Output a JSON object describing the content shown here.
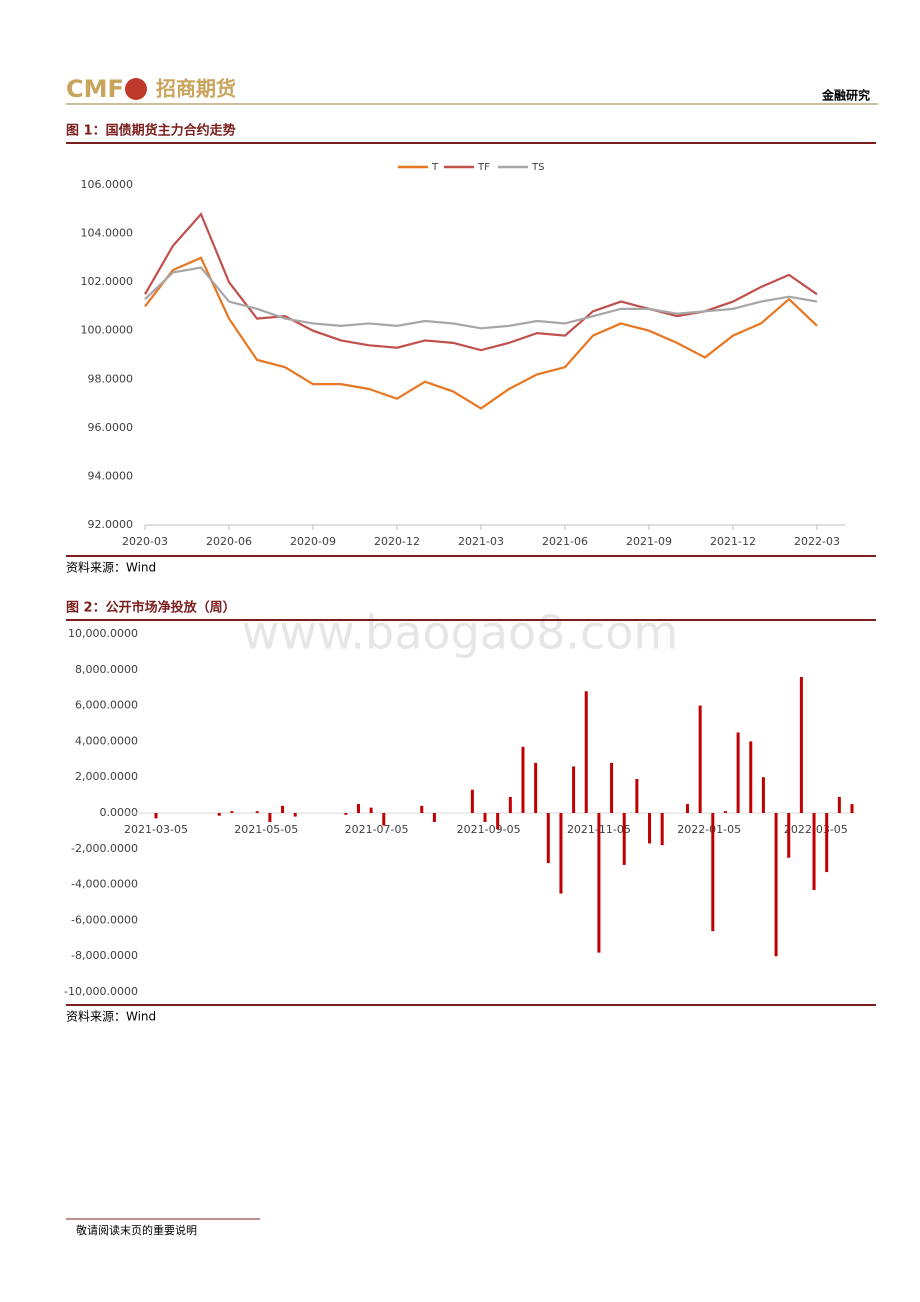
{
  "header": {
    "logo": "CMF",
    "brand": "招商期货",
    "section": "金融研究"
  },
  "watermark": "www.baogao8.com",
  "figures": [
    {
      "title": "图 1：国债期货主力合约走势",
      "source": "资料来源：Wind"
    },
    {
      "title": "图 2：公开市场净投放（周）",
      "source": "资料来源：Wind"
    }
  ],
  "footer": "敬请阅读末页的重要说明",
  "chart_data": [
    {
      "type": "line",
      "x": [
        "2020-03",
        "2020-04",
        "2020-05",
        "2020-06",
        "2020-07",
        "2020-08",
        "2020-09",
        "2020-10",
        "2020-11",
        "2020-12",
        "2021-01",
        "2021-02",
        "2021-03",
        "2021-04",
        "2021-05",
        "2021-06",
        "2021-07",
        "2021-08",
        "2021-09",
        "2021-10",
        "2021-11",
        "2021-12",
        "2022-01",
        "2022-02",
        "2022-03"
      ],
      "xlim": [
        "2020-03",
        "2022-04"
      ],
      "xticks": [
        "2020-03",
        "2020-06",
        "2020-09",
        "2020-12",
        "2021-03",
        "2021-06",
        "2021-09",
        "2021-12",
        "2022-03"
      ],
      "ylim": [
        92,
        106
      ],
      "yticks": [
        {
          "value": 92,
          "label": "92.0000"
        },
        {
          "value": 94,
          "label": "94.0000"
        },
        {
          "value": 96,
          "label": "96.0000"
        },
        {
          "value": 98,
          "label": "98.0000"
        },
        {
          "value": 100,
          "label": "100.0000"
        },
        {
          "value": 102,
          "label": "102.0000"
        },
        {
          "value": 104,
          "label": "104.0000"
        },
        {
          "value": 106,
          "label": "106.0000"
        }
      ],
      "legend": "top",
      "series": [
        {
          "name": "T",
          "color": "#e87722",
          "values": [
            101.0,
            102.5,
            103.0,
            100.5,
            98.8,
            98.5,
            97.8,
            97.8,
            97.6,
            97.2,
            97.9,
            97.5,
            96.8,
            97.6,
            98.2,
            98.5,
            99.8,
            100.3,
            100.0,
            99.5,
            98.9,
            99.8,
            100.3,
            101.3,
            100.2
          ]
        },
        {
          "name": "TF",
          "color": "#c0504d",
          "values": [
            101.5,
            103.5,
            104.8,
            102.0,
            100.5,
            100.6,
            100.0,
            99.6,
            99.4,
            99.3,
            99.6,
            99.5,
            99.2,
            99.5,
            99.9,
            99.8,
            100.8,
            101.2,
            100.9,
            100.6,
            100.8,
            101.2,
            101.8,
            102.3,
            101.5
          ]
        },
        {
          "name": "TS",
          "color": "#a6a6a6",
          "values": [
            101.3,
            102.4,
            102.6,
            101.2,
            100.9,
            100.5,
            100.3,
            100.2,
            100.3,
            100.2,
            100.4,
            100.3,
            100.1,
            100.2,
            100.4,
            100.3,
            100.6,
            100.9,
            100.9,
            100.7,
            100.8,
            100.9,
            101.2,
            101.4,
            101.2
          ]
        }
      ]
    },
    {
      "type": "bar",
      "x": [
        "2021-03-05",
        "2021-03-12",
        "2021-03-19",
        "2021-03-26",
        "2021-04-02",
        "2021-04-09",
        "2021-04-16",
        "2021-04-23",
        "2021-04-30",
        "2021-05-07",
        "2021-05-14",
        "2021-05-21",
        "2021-05-28",
        "2021-06-04",
        "2021-06-11",
        "2021-06-18",
        "2021-06-25",
        "2021-07-02",
        "2021-07-09",
        "2021-07-16",
        "2021-07-23",
        "2021-07-30",
        "2021-08-06",
        "2021-08-13",
        "2021-08-20",
        "2021-08-27",
        "2021-09-03",
        "2021-09-10",
        "2021-09-17",
        "2021-09-24",
        "2021-10-01",
        "2021-10-08",
        "2021-10-15",
        "2021-10-22",
        "2021-10-29",
        "2021-11-05",
        "2021-11-12",
        "2021-11-19",
        "2021-11-26",
        "2021-12-03",
        "2021-12-10",
        "2021-12-17",
        "2021-12-24",
        "2021-12-31",
        "2022-01-07",
        "2022-01-14",
        "2022-01-21",
        "2022-01-28",
        "2022-02-04",
        "2022-02-11",
        "2022-02-18",
        "2022-02-25",
        "2022-03-04",
        "2022-03-11",
        "2022-03-18",
        "2022-03-25"
      ],
      "values": [
        -300,
        0,
        0,
        0,
        0,
        -150,
        100,
        0,
        100,
        -500,
        400,
        -200,
        0,
        0,
        0,
        -100,
        500,
        300,
        -700,
        0,
        0,
        400,
        -500,
        0,
        0,
        1300,
        -500,
        -900,
        900,
        3700,
        2800,
        -2800,
        -4500,
        2600,
        6800,
        -7800,
        2800,
        -2900,
        1900,
        -1700,
        -1800,
        0,
        500,
        6000,
        -6600,
        100,
        4500,
        4000,
        2000,
        -8000,
        -2500,
        7600,
        -4300,
        -3300,
        900,
        500
      ],
      "color": "#c00000",
      "xlim": [
        "2021-03-05",
        "2022-03-25"
      ],
      "xticks": [
        "2021-03-05",
        "2021-05-05",
        "2021-07-05",
        "2021-09-05",
        "2021-11-05",
        "2022-01-05",
        "2022-03-05"
      ],
      "ylim": [
        -10000,
        10000
      ],
      "yticks": [
        {
          "value": -10000,
          "label": "-10,000.0000"
        },
        {
          "value": -8000,
          "label": "-8,000.0000"
        },
        {
          "value": -6000,
          "label": "-6,000.0000"
        },
        {
          "value": -4000,
          "label": "-4,000.0000"
        },
        {
          "value": -2000,
          "label": "-2,000.0000"
        },
        {
          "value": 0,
          "label": "0.0000"
        },
        {
          "value": 2000,
          "label": "2,000.0000"
        },
        {
          "value": 4000,
          "label": "4,000.0000"
        },
        {
          "value": 6000,
          "label": "6,000.0000"
        },
        {
          "value": 8000,
          "label": "8,000.0000"
        },
        {
          "value": 10000,
          "label": "10,000.0000"
        }
      ]
    }
  ]
}
